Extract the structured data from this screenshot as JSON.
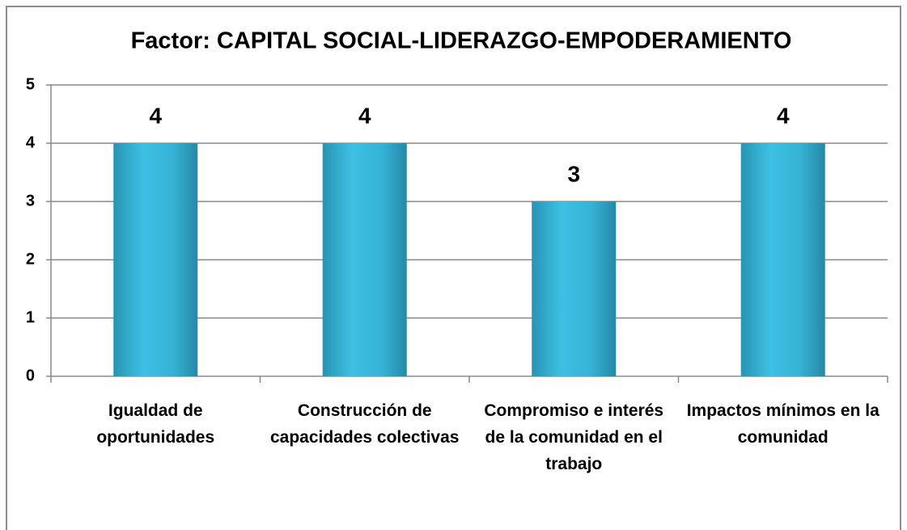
{
  "chart_data": {
    "type": "bar",
    "title": "Factor: CAPITAL SOCIAL-LIDERAZGO-EMPODERAMIENTO",
    "categories": [
      "Igualdad de oportunidades",
      "Construcción de capacidades colectivas",
      "Compromiso e interés de la comunidad en el trabajo",
      "Impactos mínimos en la comunidad"
    ],
    "values": [
      4,
      4,
      3,
      4
    ],
    "color": "#35b4d8",
    "ylim": [
      0,
      5
    ],
    "yticks": [
      0,
      1,
      2,
      3,
      4,
      5
    ],
    "grid": true
  }
}
